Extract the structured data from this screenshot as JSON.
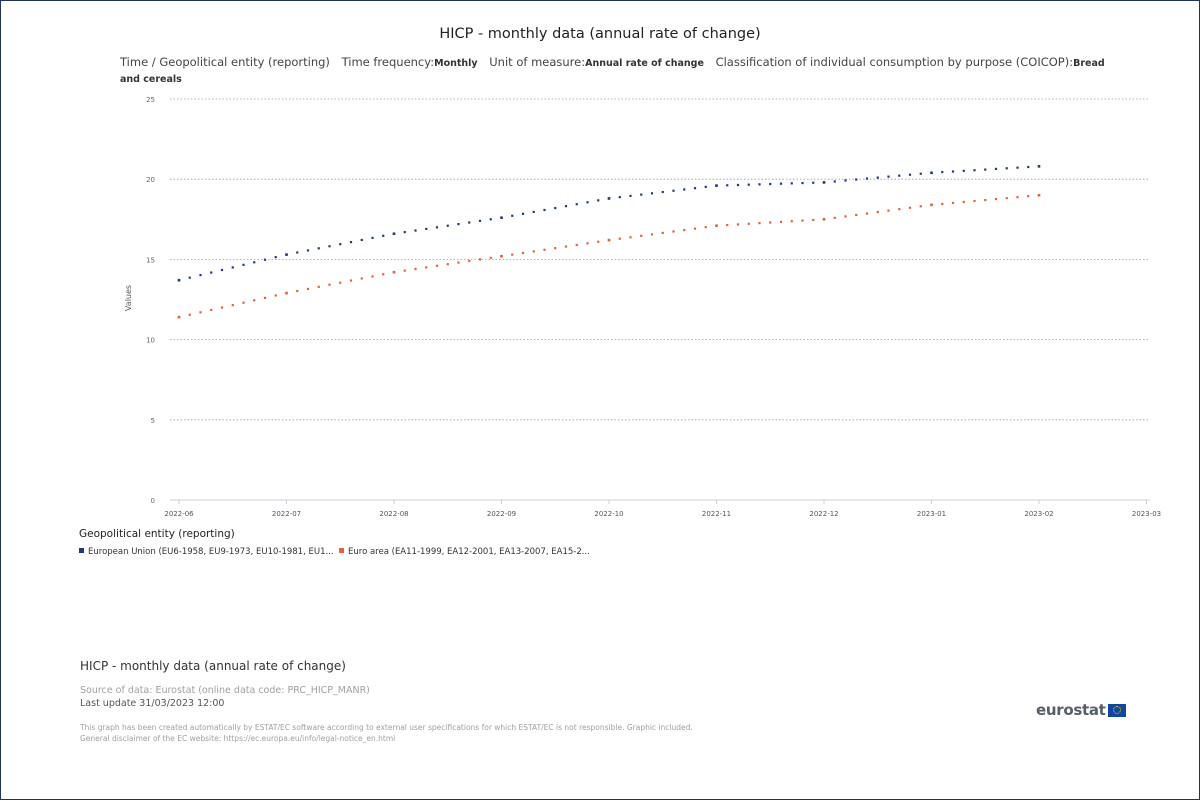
{
  "title": "HICP - monthly data (annual rate of change)",
  "subtitle": {
    "dim1": "Time / Geopolitical entity (reporting)",
    "freq_label": "Time frequency:",
    "freq_value": "Monthly",
    "unit_label": "Unit of measure:",
    "unit_value": "Annual rate of change",
    "class_label": "Classification of individual consumption by purpose (COICOP):",
    "class_value": "Bread and cereals"
  },
  "colors": {
    "eu": "#1f3b7a",
    "ea": "#e2623a"
  },
  "chart_data": {
    "type": "line",
    "title": "HICP - monthly data (annual rate of change)",
    "ylabel": "Values",
    "xlabel": "",
    "ylim": [
      0,
      25
    ],
    "yticks": [
      0,
      5,
      10,
      15,
      20,
      25
    ],
    "grid": true,
    "legend_position": "bottom-left",
    "categories": [
      "2022-06",
      "2022-07",
      "2022-08",
      "2022-09",
      "2022-10",
      "2022-11",
      "2022-12",
      "2023-01",
      "2023-02",
      "2023-03"
    ],
    "series": [
      {
        "name": "European Union (EU6-1958, EU9-1973, EU10-1981, EU1...",
        "color": "#1f3b7a",
        "values": [
          13.7,
          15.3,
          16.6,
          17.6,
          18.8,
          19.6,
          19.8,
          20.4,
          20.8,
          null
        ]
      },
      {
        "name": "Euro area (EA11-1999, EA12-2001, EA13-2007, EA15-2...",
        "color": "#e2623a",
        "values": [
          11.4,
          12.9,
          14.2,
          15.2,
          16.2,
          17.1,
          17.5,
          18.4,
          19.0,
          null
        ]
      }
    ]
  },
  "legend": {
    "title": "Geopolitical entity (reporting)",
    "items": [
      {
        "label": "European Union (EU6-1958, EU9-1973, EU10-1981, EU1..."
      },
      {
        "label": "Euro area (EA11-1999, EA12-2001, EA13-2007, EA15-2..."
      }
    ]
  },
  "footer": {
    "title": "HICP - monthly data (annual rate of change)",
    "source": "Source of data: Eurostat (online data code: PRC_HICP_MANR)",
    "update": "Last update 31/03/2023 12:00",
    "disclaimer1": "This graph has been created automatically by ESTAT/EC software according to external user specifications for which ESTAT/EC is not responsible. Graphic included.",
    "disclaimer2": "General disclaimer of the EC website: https://ec.europa.eu/info/legal-notice_en.html",
    "logo_text": "eurostat"
  }
}
